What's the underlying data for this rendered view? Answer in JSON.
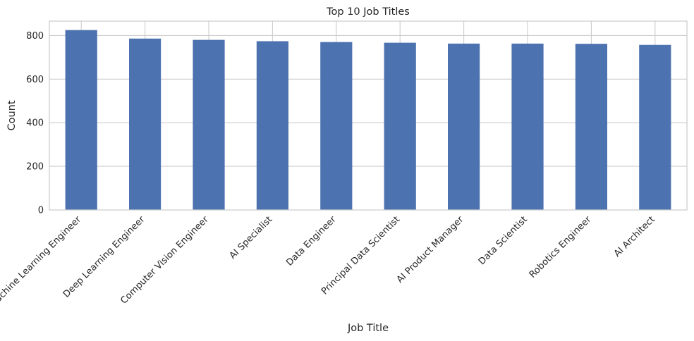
{
  "chart_data": {
    "type": "bar",
    "title": "Top 10 Job Titles",
    "xlabel": "Job Title",
    "ylabel": "Count",
    "categories": [
      "Machine Learning Engineer",
      "Deep Learning Engineer",
      "Computer Vision Engineer",
      "AI Specialist",
      "Data Engineer",
      "Principal Data Scientist",
      "AI Product Manager",
      "Data Scientist",
      "Robotics Engineer",
      "AI Architect"
    ],
    "values": [
      825,
      786,
      780,
      774,
      770,
      767,
      763,
      763,
      762,
      757
    ],
    "ylim": [
      0,
      866
    ],
    "yticks": [
      0,
      200,
      400,
      600,
      800
    ],
    "grid": true,
    "bar_color": "#4c72b0",
    "grid_color": "#cccccc",
    "background": "#ffffff"
  }
}
